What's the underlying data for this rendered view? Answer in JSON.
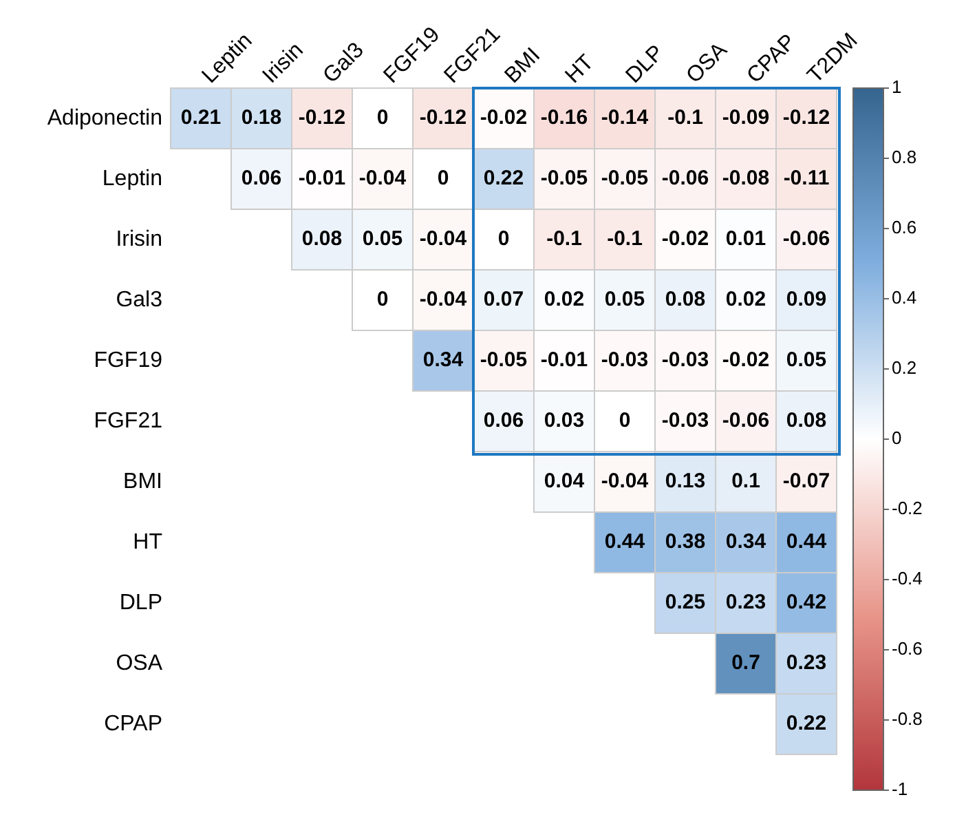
{
  "chart_data": {
    "type": "heatmap",
    "categories": [
      "Leptin",
      "Irisin",
      "Gal3",
      "FGF19",
      "FGF21",
      "BMI",
      "HT",
      "DLP",
      "OSA",
      "CPAP",
      "T2DM"
    ],
    "y_categories": [
      "Adiponectin",
      "Leptin",
      "Irisin",
      "Gal3",
      "FGF19",
      "FGF21",
      "BMI",
      "HT",
      "DLP",
      "OSA",
      "CPAP"
    ],
    "cells": [
      [
        0.21,
        0.18,
        -0.12,
        0,
        -0.12,
        -0.02,
        -0.16,
        -0.14,
        -0.1,
        -0.09,
        -0.12
      ],
      [
        null,
        0.06,
        -0.01,
        -0.04,
        0,
        0.22,
        -0.05,
        -0.05,
        -0.06,
        -0.08,
        -0.11
      ],
      [
        null,
        null,
        0.08,
        0.05,
        -0.04,
        0,
        -0.1,
        -0.1,
        -0.02,
        0.01,
        -0.06
      ],
      [
        null,
        null,
        null,
        0,
        -0.04,
        0.07,
        0.02,
        0.05,
        0.08,
        0.02,
        0.09
      ],
      [
        null,
        null,
        null,
        null,
        0.34,
        -0.05,
        -0.01,
        -0.03,
        -0.03,
        -0.02,
        0.05
      ],
      [
        null,
        null,
        null,
        null,
        null,
        0.06,
        0.03,
        0,
        -0.03,
        -0.06,
        0.08
      ],
      [
        null,
        null,
        null,
        null,
        null,
        null,
        0.04,
        -0.04,
        0.13,
        0.1,
        -0.07
      ],
      [
        null,
        null,
        null,
        null,
        null,
        null,
        null,
        0.44,
        0.38,
        0.34,
        0.44
      ],
      [
        null,
        null,
        null,
        null,
        null,
        null,
        null,
        null,
        0.25,
        0.23,
        0.42
      ],
      [
        null,
        null,
        null,
        null,
        null,
        null,
        null,
        null,
        null,
        0.7,
        0.23
      ],
      [
        null,
        null,
        null,
        null,
        null,
        null,
        null,
        null,
        null,
        null,
        0.22
      ]
    ],
    "data_labels": true,
    "clim": [
      -1,
      1
    ],
    "cticks": [
      -1,
      -0.8,
      -0.6,
      -0.4,
      -0.2,
      0,
      0.2,
      0.4,
      0.6,
      0.8,
      1
    ]
  }
}
